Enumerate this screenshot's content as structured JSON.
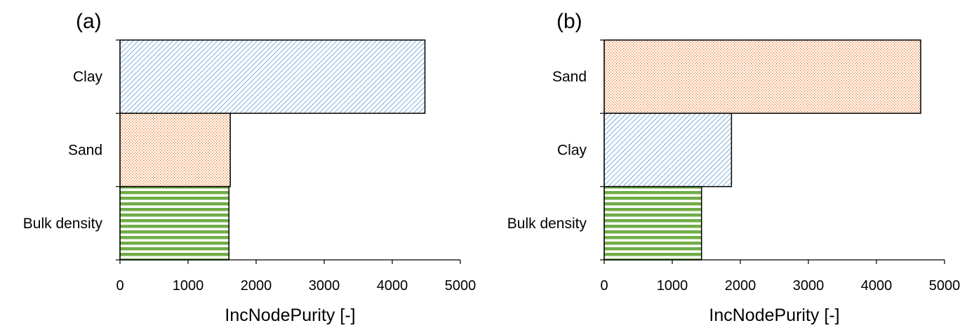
{
  "chart_data": [
    {
      "type": "bar",
      "orientation": "horizontal",
      "panel_label": "(a)",
      "xlabel": "IncNodePurity [-]",
      "xlim": [
        0,
        5000
      ],
      "xticks": [
        0,
        1000,
        2000,
        3000,
        4000,
        5000
      ],
      "bars": [
        {
          "category": "Clay",
          "value": 4480,
          "pattern": "diagonal",
          "color": "#5b9bd5"
        },
        {
          "category": "Sand",
          "value": 1620,
          "pattern": "dotted",
          "color": "#ed7d31"
        },
        {
          "category": "Bulk density",
          "value": 1600,
          "pattern": "horizontal",
          "color": "#70ad47"
        }
      ],
      "grid": false,
      "legend": "none"
    },
    {
      "type": "bar",
      "orientation": "horizontal",
      "panel_label": "(b)",
      "xlabel": "IncNodePurity [-]",
      "xlim": [
        0,
        5000
      ],
      "xticks": [
        0,
        1000,
        2000,
        3000,
        4000,
        5000
      ],
      "bars": [
        {
          "category": "Sand",
          "value": 4650,
          "pattern": "dotted",
          "color": "#ed7d31"
        },
        {
          "category": "Clay",
          "value": 1870,
          "pattern": "diagonal",
          "color": "#5b9bd5"
        },
        {
          "category": "Bulk density",
          "value": 1430,
          "pattern": "horizontal",
          "color": "#70ad47"
        }
      ],
      "grid": false,
      "legend": "none"
    }
  ]
}
